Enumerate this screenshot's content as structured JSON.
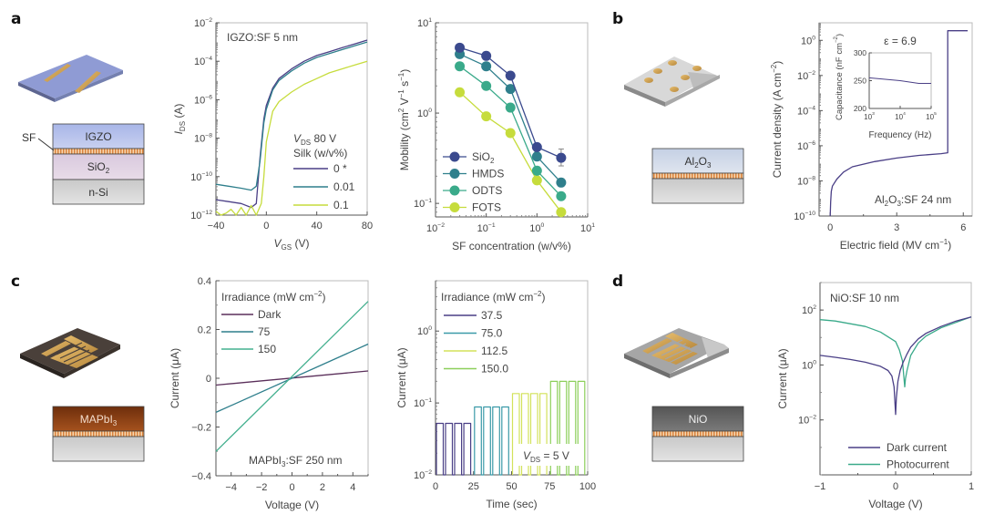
{
  "panels": {
    "a": {
      "letter": "a",
      "device_layers": [
        "IGZO",
        "SiO2",
        "n-Si"
      ],
      "sf_label": "SF"
    },
    "b": {
      "letter": "b",
      "device_layers": [
        "Al2O3"
      ]
    },
    "c": {
      "letter": "c",
      "device_layers": [
        "MAPbI3"
      ]
    },
    "d": {
      "letter": "d",
      "device_layers": [
        "NiO"
      ]
    }
  },
  "colors": {
    "purple": "#4a3f86",
    "navy": "#3b4a8e",
    "teal_dark": "#2f7f8c",
    "teal": "#3aaa8a",
    "teal_light": "#44b08f",
    "yellow_green": "#c6dc3c",
    "green": "#8ccf5a",
    "dark_purple": "#5a2f5a",
    "axis": "#888888"
  },
  "chart_data": [
    {
      "id": "a1",
      "type": "line",
      "annotation": "IGZO:SF 5 nm",
      "xlabel": "V_GS (V)",
      "ylabel": "I_DS (A)",
      "xlim": [
        -40,
        80
      ],
      "ylim_log10": [
        -12,
        -2
      ],
      "yscale": "log",
      "xticks": [
        -40,
        0,
        40,
        80
      ],
      "yticks_log10": [
        -12,
        -10,
        -8,
        -6,
        -4,
        -2
      ],
      "legend_title": [
        "V_DS 80 V",
        "Silk (w/v%)"
      ],
      "legend_position": "right",
      "series": [
        {
          "name": "0 *",
          "color": "#4a3f86",
          "x": [
            -40,
            -30,
            -20,
            -12,
            -8,
            -5,
            -2,
            0,
            5,
            10,
            20,
            30,
            40,
            50,
            60,
            70,
            80
          ],
          "y_log10": [
            -11.2,
            -11.3,
            -11.4,
            -11.6,
            -11.4,
            -9.0,
            -7.0,
            -6.3,
            -5.4,
            -4.9,
            -4.4,
            -4.0,
            -3.7,
            -3.5,
            -3.3,
            -3.1,
            -2.9
          ]
        },
        {
          "name": "0.01",
          "color": "#2f7f8c",
          "x": [
            -40,
            -30,
            -20,
            -12,
            -8,
            -5,
            -2,
            0,
            5,
            10,
            20,
            30,
            40,
            50,
            60,
            70,
            80
          ],
          "y_log10": [
            -10.4,
            -10.5,
            -10.6,
            -10.7,
            -10.5,
            -9.2,
            -7.2,
            -6.5,
            -5.5,
            -5.0,
            -4.5,
            -4.1,
            -3.8,
            -3.6,
            -3.4,
            -3.2,
            -3.0
          ]
        },
        {
          "name": "0.1",
          "color": "#c6dc3c",
          "x": [
            -40,
            -36,
            -32,
            -28,
            -24,
            -20,
            -16,
            -12,
            -8,
            -4,
            -2,
            0,
            5,
            10,
            20,
            30,
            40,
            50,
            60,
            70,
            80
          ],
          "y_log10": [
            -11.8,
            -12.0,
            -11.9,
            -11.7,
            -12.0,
            -11.6,
            -12.0,
            -11.5,
            -12.0,
            -11.4,
            -10.0,
            -8.2,
            -6.6,
            -6.1,
            -5.6,
            -5.2,
            -4.9,
            -4.6,
            -4.4,
            -4.2,
            -4.0
          ]
        }
      ]
    },
    {
      "id": "a2",
      "type": "scatter",
      "xlabel": "SF concentration (w/v%)",
      "ylabel": "Mobility (cm² V⁻¹ s⁻¹)",
      "xscale": "log",
      "yscale": "log",
      "xlim_log10": [
        -2,
        1
      ],
      "ylim_log10": [
        -1.15,
        1
      ],
      "xticks_log10": [
        -2,
        -1,
        0,
        1
      ],
      "yticks_log10": [
        -1,
        0,
        1
      ],
      "legend_position": "bottom-left",
      "x": [
        0.03,
        0.1,
        0.3,
        1,
        3
      ],
      "series": [
        {
          "name": "SiO2",
          "color": "#3b4a8e",
          "values": [
            5.3,
            4.3,
            2.6,
            0.42,
            0.32
          ]
        },
        {
          "name": "HMDS",
          "color": "#2f7f8c",
          "values": [
            4.5,
            3.3,
            1.85,
            0.33,
            0.17
          ]
        },
        {
          "name": "ODTS",
          "color": "#3aaa8a",
          "values": [
            3.3,
            2.0,
            1.15,
            0.23,
            0.12
          ]
        },
        {
          "name": "FOTS",
          "color": "#c6dc3c",
          "values": [
            1.7,
            0.92,
            0.6,
            0.18,
            0.08
          ]
        }
      ]
    },
    {
      "id": "b",
      "type": "line",
      "annotation": "Al2O3:SF 24 nm",
      "xlabel": "Electric field (MV cm⁻¹)",
      "ylabel": "Current density (A cm⁻²)",
      "xlim": [
        -0.5,
        6.4
      ],
      "ylim_log10": [
        -10,
        1
      ],
      "yscale": "log",
      "xticks": [
        0,
        3,
        6
      ],
      "yticks_log10": [
        -10,
        -8,
        -6,
        -4,
        -2,
        0
      ],
      "series": [
        {
          "name": "J-E",
          "color": "#4a3f86",
          "x": [
            0,
            0.02,
            0.05,
            0.1,
            0.3,
            0.6,
            1,
            2,
            3,
            4,
            5,
            5.3,
            5.3,
            6.2
          ],
          "y_log10": [
            -10,
            -9.2,
            -8.6,
            -8.3,
            -7.9,
            -7.5,
            -7.2,
            -6.9,
            -6.7,
            -6.55,
            -6.45,
            -6.4,
            0.55,
            0.55
          ]
        }
      ],
      "inset": {
        "annotation": "ε = 6.9",
        "xlabel": "Frequency (Hz)",
        "ylabel": "Capacitance (nF cm⁻²)",
        "xscale": "log",
        "xlim_log10": [
          3,
          5
        ],
        "ylim": [
          200,
          300
        ],
        "xticks_log10": [
          3,
          4,
          5
        ],
        "yticks": [
          200,
          250,
          300
        ],
        "series": [
          {
            "name": "C-f",
            "color": "#4a3f86",
            "x_log10": [
              3,
              4,
              4.6,
              5
            ],
            "y": [
              255,
              250,
              245,
              245
            ]
          }
        ]
      }
    },
    {
      "id": "c1",
      "type": "line",
      "annotation": "MAPbI3:SF 250 nm",
      "xlabel": "Voltage (V)",
      "ylabel": "Current (μA)",
      "xlim": [
        -5,
        5
      ],
      "ylim": [
        -0.4,
        0.4
      ],
      "xticks": [
        -4,
        -2,
        0,
        2,
        4
      ],
      "yticks": [
        -0.4,
        -0.2,
        0,
        0.2,
        0.4
      ],
      "legend_title": "Irradiance (mW cm⁻²)",
      "legend_position": "top-left",
      "series": [
        {
          "name": "Dark",
          "color": "#5a2f5a",
          "x": [
            -5,
            5
          ],
          "y": [
            -0.028,
            0.03
          ]
        },
        {
          "name": "75",
          "color": "#2f7f8c",
          "x": [
            -5,
            5
          ],
          "y": [
            -0.14,
            0.14
          ]
        },
        {
          "name": "150",
          "color": "#44b08f",
          "x": [
            -5,
            5
          ],
          "y": [
            -0.3,
            0.315
          ]
        }
      ]
    },
    {
      "id": "c2",
      "type": "line",
      "xlabel": "Time (sec)",
      "ylabel": "Current (μA)",
      "xlim": [
        0,
        100
      ],
      "ylim_log10": [
        -2,
        0.7
      ],
      "yscale": "log",
      "xticks": [
        0,
        25,
        50,
        75,
        100
      ],
      "yticks_log10": [
        -2,
        -1,
        0
      ],
      "legend_title": "Irradiance (mW cm⁻²)",
      "legend_position": "top-left",
      "annotation": "V_DS = 5 V",
      "pulse_period_sec": 6,
      "pulses_per_level": 4,
      "off_current_uA": 0.01,
      "series": [
        {
          "name": "37.5",
          "color": "#4a3f86",
          "t_start": 0,
          "t_end": 24,
          "on_current_uA": 0.052
        },
        {
          "name": "75.0",
          "color": "#3a9aa8",
          "t_start": 25,
          "t_end": 49,
          "on_current_uA": 0.088
        },
        {
          "name": "112.5",
          "color": "#d3e25a",
          "t_start": 50,
          "t_end": 74,
          "on_current_uA": 0.135
        },
        {
          "name": "150.0",
          "color": "#8ccf5a",
          "t_start": 75,
          "t_end": 99,
          "on_current_uA": 0.2
        }
      ]
    },
    {
      "id": "d",
      "type": "line",
      "annotation": "NiO:SF 10 nm",
      "xlabel": "Voltage (V)",
      "ylabel": "Current (μA)",
      "xlim": [
        -1,
        1
      ],
      "ylim_log10": [
        -4,
        3
      ],
      "yscale": "log",
      "xticks": [
        -1,
        0,
        1
      ],
      "yticks_log10": [
        -2,
        0,
        2
      ],
      "legend_position": "bottom-right",
      "series": [
        {
          "name": "Dark current",
          "color": "#4a3f86",
          "x": [
            -1,
            -0.8,
            -0.6,
            -0.4,
            -0.2,
            -0.1,
            -0.05,
            -0.02,
            0,
            0.01,
            0.03,
            0.06,
            0.1,
            0.15,
            0.2,
            0.3,
            0.4,
            0.6,
            0.8,
            1
          ],
          "y_log10": [
            0.35,
            0.28,
            0.2,
            0.1,
            -0.05,
            -0.2,
            -0.4,
            -0.8,
            -1.8,
            -1.2,
            -0.6,
            -0.2,
            0.1,
            0.4,
            0.65,
            0.95,
            1.15,
            1.4,
            1.6,
            1.75
          ]
        },
        {
          "name": "Photocurrent",
          "color": "#3aaa8a",
          "x": [
            -1,
            -0.8,
            -0.6,
            -0.4,
            -0.2,
            0,
            0.05,
            0.09,
            0.12,
            0.13,
            0.15,
            0.2,
            0.3,
            0.4,
            0.6,
            0.8,
            1
          ],
          "y_log10": [
            1.65,
            1.6,
            1.5,
            1.4,
            1.2,
            0.85,
            0.55,
            0.15,
            -0.8,
            -0.5,
            -0.2,
            0.35,
            0.8,
            1.05,
            1.35,
            1.55,
            1.75
          ]
        }
      ]
    }
  ]
}
